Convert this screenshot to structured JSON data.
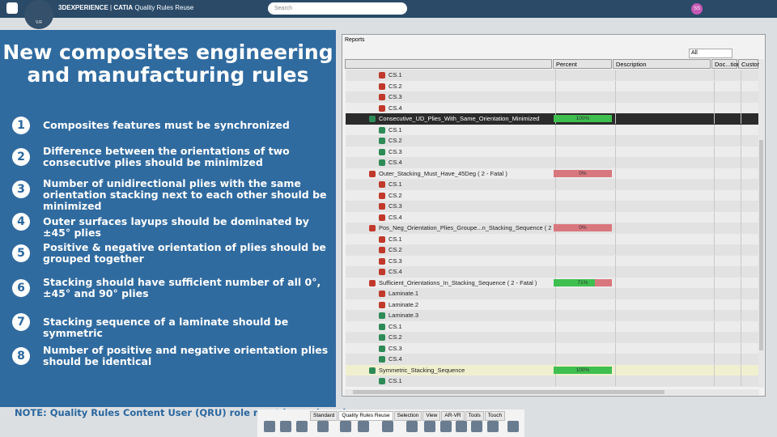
{
  "header": {
    "brand": "3DEXPERIENCE",
    "product": "CATIA",
    "app": "Quality Rules Reuse",
    "search": "Search",
    "avatar": "SS",
    "compass": "V.R"
  },
  "left_panel": {
    "title": "New composites engineering and manufacturing rules",
    "rules": [
      {
        "number": 1,
        "text": "Composites features must be synchronized"
      },
      {
        "number": 2,
        "text": "Difference between the orientations of two consecutive plies should be minimized"
      },
      {
        "number": 3,
        "text": "Number of unidirectional plies with the same orientation stacking next to each other should be minimized"
      },
      {
        "number": 4,
        "text": "Outer surfaces layups should be dominated by ±45° plies"
      },
      {
        "number": 5,
        "text": "Positive & negative orientation of plies should be grouped together"
      },
      {
        "number": 6,
        "text": "Stacking should have sufficient number of all 0°, ±45° and 90° plies"
      },
      {
        "number": 7,
        "text": "Stacking sequence of a laminate should be symmetric"
      },
      {
        "number": 8,
        "text": "Number of positive and negative orientation plies should be identical"
      }
    ],
    "note": "NOTE: Quality Rules Content User (QRU) role must be assigned"
  },
  "reports": {
    "title": "Reports",
    "filter": "All",
    "columns": [
      "Percent",
      "Description",
      "Doc...tion",
      "Custor"
    ],
    "rows": [
      {
        "label": "CS.1",
        "level": 1,
        "status": "fail"
      },
      {
        "label": "CS.2",
        "level": 1,
        "status": "fail"
      },
      {
        "label": "CS.3",
        "level": 1,
        "status": "fail"
      },
      {
        "label": "CS.4",
        "level": 1,
        "status": "fail"
      },
      {
        "label": "Consecutive_UD_Plies_With_Same_Orientation_Minimized",
        "level": 0,
        "status": "pass",
        "percent": 100,
        "percent_label": "100%",
        "selected": true
      },
      {
        "label": "CS.1",
        "level": 1,
        "status": "pass"
      },
      {
        "label": "CS.2",
        "level": 1,
        "status": "pass"
      },
      {
        "label": "CS.3",
        "level": 1,
        "status": "pass"
      },
      {
        "label": "CS.4",
        "level": 1,
        "status": "pass"
      },
      {
        "label": "Outer_Stacking_Must_Have_45Deg ( 2 - Fatal )",
        "level": 0,
        "status": "fail",
        "percent": 0,
        "percent_label": "0%"
      },
      {
        "label": "CS.1",
        "level": 1,
        "status": "fail"
      },
      {
        "label": "CS.2",
        "level": 1,
        "status": "fail"
      },
      {
        "label": "CS.3",
        "level": 1,
        "status": "fail"
      },
      {
        "label": "CS.4",
        "level": 1,
        "status": "fail"
      },
      {
        "label": "Pos_Neg_Orientation_Plies_Groupe...n_Stacking_Sequence ( 2 - Fatal )",
        "level": 0,
        "status": "fail",
        "percent": 0,
        "percent_label": "0%"
      },
      {
        "label": "CS.1",
        "level": 1,
        "status": "fail"
      },
      {
        "label": "CS.2",
        "level": 1,
        "status": "fail"
      },
      {
        "label": "CS.3",
        "level": 1,
        "status": "fail"
      },
      {
        "label": "CS.4",
        "level": 1,
        "status": "fail"
      },
      {
        "label": "Sufficient_Orientations_In_Stacking_Sequence ( 2 - Fatal )",
        "level": 0,
        "status": "fail",
        "percent": 71,
        "percent_label": "71%"
      },
      {
        "label": "Laminate.1",
        "level": 1,
        "status": "fail"
      },
      {
        "label": "Laminate.2",
        "level": 1,
        "status": "fail"
      },
      {
        "label": "Laminate.3",
        "level": 1,
        "status": "pass"
      },
      {
        "label": "CS.1",
        "level": 1,
        "status": "pass"
      },
      {
        "label": "CS.2",
        "level": 1,
        "status": "pass"
      },
      {
        "label": "CS.3",
        "level": 1,
        "status": "pass"
      },
      {
        "label": "CS.4",
        "level": 1,
        "status": "pass"
      },
      {
        "label": "Symmetric_Stacking_Sequence",
        "level": 0,
        "status": "pass",
        "percent": 100,
        "percent_label": "100%",
        "highlighted": true
      },
      {
        "label": "CS.1",
        "level": 1,
        "status": "pass"
      }
    ]
  },
  "toolbar": {
    "tabs": [
      "Standard",
      "Quality Rules Reuse",
      "Selection",
      "View",
      "AR-VR",
      "Tools",
      "Touch"
    ]
  }
}
